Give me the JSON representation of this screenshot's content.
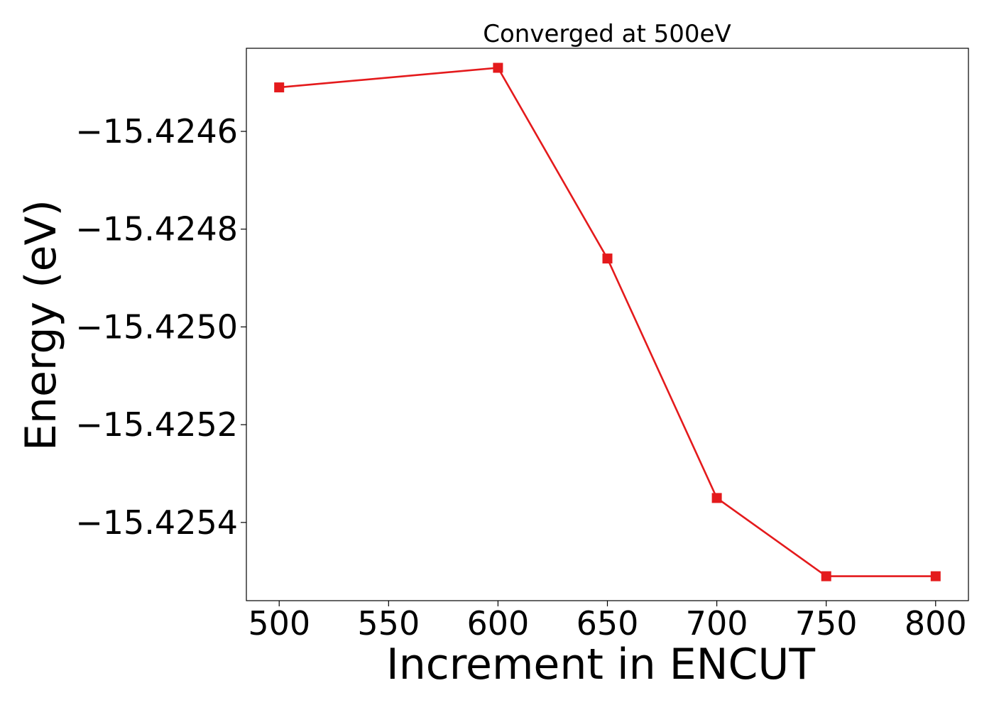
{
  "chart_data": {
    "type": "line",
    "title": "Converged at 500eV",
    "xlabel": "Increment in ENCUT",
    "ylabel": "Energy (eV)",
    "x": [
      500,
      600,
      650,
      700,
      750,
      800
    ],
    "series": [
      {
        "values": [
          -15.42451,
          -15.42447,
          -15.42486,
          -15.42535,
          -15.42551,
          -15.42551
        ]
      }
    ],
    "xlim": [
      485,
      815
    ],
    "ylim": [
      -15.42556,
      -15.42443
    ],
    "x_ticks": [
      500,
      550,
      600,
      650,
      700,
      750,
      800
    ],
    "x_tick_labels": [
      "500",
      "550",
      "600",
      "650",
      "700",
      "750",
      "800"
    ],
    "y_ticks": [
      -15.4246,
      -15.4248,
      -15.425,
      -15.4252,
      -15.4254
    ],
    "y_tick_labels": [
      "−15.4246",
      "−15.4248",
      "−15.4250",
      "−15.4252",
      "−15.4254"
    ],
    "grid": false,
    "line_color": "#e41a1c",
    "marker": "square"
  }
}
